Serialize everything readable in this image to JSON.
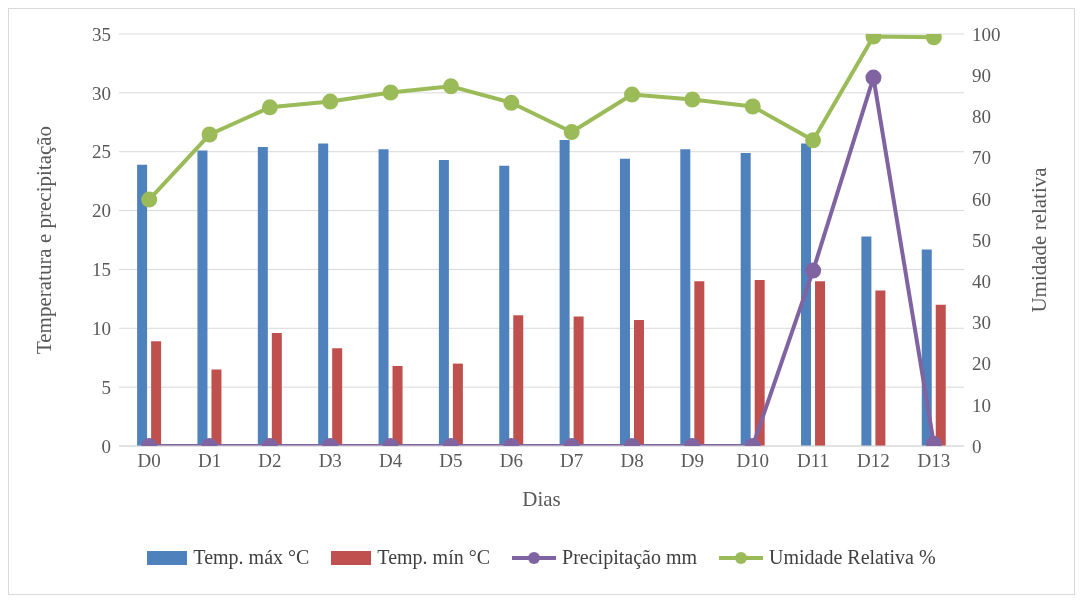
{
  "chart_data": {
    "type": "bar",
    "xlabel": "Dias",
    "ylabel": "Temperatura e precipitação",
    "y2label": "Umidade relativa",
    "categories": [
      "D0",
      "D1",
      "D2",
      "D3",
      "D4",
      "D5",
      "D6",
      "D7",
      "D8",
      "D9",
      "D10",
      "D11",
      "D12",
      "D13"
    ],
    "series": [
      {
        "name": "Temp. máx °C",
        "color": "#4f81bd",
        "values": [
          23.9,
          25.1,
          25.4,
          25.7,
          25.2,
          24.3,
          23.8,
          26.0,
          24.4,
          25.2,
          24.9,
          25.7,
          17.8,
          16.7
        ]
      },
      {
        "name": "Temp. mín °C",
        "color": "#c0504d",
        "values": [
          8.9,
          6.5,
          9.6,
          8.3,
          6.8,
          7.0,
          11.1,
          11.0,
          10.7,
          14.0,
          14.1,
          14.0,
          13.2,
          12.0
        ]
      },
      {
        "name": "Precipitação mm",
        "type": "line",
        "color": "#8064a2",
        "values": [
          0,
          0,
          0,
          0,
          0,
          0,
          0,
          0,
          0,
          0,
          0,
          14.9,
          31.3,
          0.2
        ]
      },
      {
        "name": "Umidade Relativa %",
        "type": "line",
        "axis": "y2",
        "color": "#9bbb59",
        "values": [
          59.8,
          75.6,
          82.2,
          83.6,
          85.8,
          87.3,
          83.3,
          76.2,
          85.3,
          84.1,
          82.4,
          74.2,
          99.4,
          99.2
        ]
      }
    ],
    "ylim": [
      0,
      35
    ],
    "yticks": [
      0,
      5,
      10,
      15,
      20,
      25,
      30,
      35
    ],
    "y2lim": [
      0,
      100
    ],
    "y2ticks": [
      0,
      10,
      20,
      30,
      40,
      50,
      60,
      70,
      80,
      90,
      100
    ],
    "grid": "y",
    "legend": "bottom",
    "marker": "circle",
    "line_style": "solid"
  }
}
